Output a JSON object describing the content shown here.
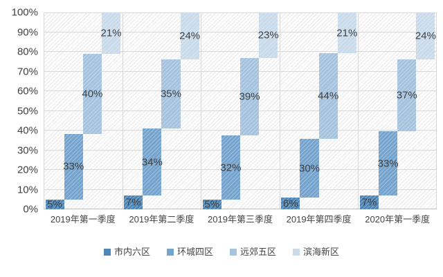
{
  "chart_data": {
    "type": "bar",
    "variant": "100%-stacked-step-columns",
    "title": "",
    "xlabel": "",
    "ylabel": "",
    "ylim": [
      0,
      100
    ],
    "grid": true,
    "legend_position": "bottom",
    "plot_background_pattern": "diagonal-hatch",
    "categories": [
      "2019年第一季度",
      "2019年第二季度",
      "2019年第三季度",
      "2019年第四季度",
      "2020年第一季度"
    ],
    "y_ticks": [
      "0%",
      "10%",
      "20%",
      "30%",
      "40%",
      "50%",
      "60%",
      "70%",
      "80%",
      "90%",
      "100%"
    ],
    "series": [
      {
        "name": "市内六区",
        "color": "#4e86b8",
        "values": [
          5,
          7,
          5,
          6,
          7
        ],
        "labels": [
          "5%",
          "7%",
          "5%",
          "6%",
          "7%"
        ]
      },
      {
        "name": "环城四区",
        "color": "#74a3cd",
        "values": [
          33,
          34,
          32,
          30,
          33
        ],
        "labels": [
          "33%",
          "34%",
          "32%",
          "30%",
          "33%"
        ]
      },
      {
        "name": "远郊五区",
        "color": "#a5c3de",
        "values": [
          40,
          35,
          39,
          44,
          37
        ],
        "labels": [
          "40%",
          "35%",
          "39%",
          "44%",
          "37%"
        ]
      },
      {
        "name": "滨海新区",
        "color": "#c9dbeb",
        "values": [
          21,
          24,
          23,
          21,
          24
        ],
        "labels": [
          "21%",
          "24%",
          "23%",
          "21%",
          "24%"
        ]
      }
    ],
    "colors": {
      "gridline": "#d9d9d9",
      "axis_text": "#404040",
      "label_text": "#404040"
    }
  }
}
